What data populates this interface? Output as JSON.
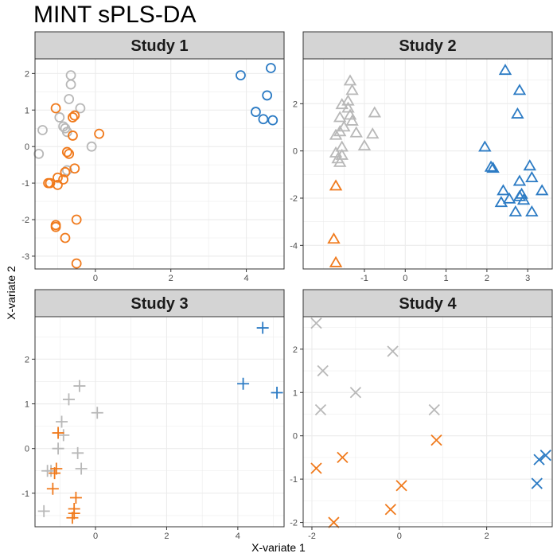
{
  "title": "MINT sPLS-DA",
  "xlabel": "X-variate 1",
  "ylabel": "X-variate 2",
  "colors": {
    "orange": "#F07A1C",
    "blue": "#2C7BC4",
    "grey": "#B8B8B8"
  },
  "chart_data": [
    {
      "type": "scatter",
      "title": "Study 1",
      "marker": "circle",
      "grid": true,
      "xlim": [
        -1.6,
        5.0
      ],
      "ylim": [
        -3.35,
        2.4
      ],
      "xticks": [
        0,
        2,
        4
      ],
      "yticks": [
        -3,
        -2,
        -1,
        0,
        1,
        2
      ],
      "series": [
        {
          "color": "#B8B8B8",
          "points": [
            [
              -0.65,
              1.95
            ],
            [
              -0.65,
              1.7
            ],
            [
              -0.7,
              1.3
            ],
            [
              -0.4,
              1.05
            ],
            [
              -0.95,
              0.8
            ],
            [
              -0.85,
              0.55
            ],
            [
              -0.8,
              0.5
            ],
            [
              -1.4,
              0.45
            ],
            [
              -0.75,
              0.4
            ],
            [
              -0.1,
              0.0
            ],
            [
              -1.5,
              -0.2
            ],
            [
              -0.75,
              -0.65
            ]
          ]
        },
        {
          "color": "#F07A1C",
          "points": [
            [
              -1.05,
              1.05
            ],
            [
              -0.55,
              0.85
            ],
            [
              -0.6,
              0.8
            ],
            [
              0.1,
              0.35
            ],
            [
              -0.6,
              0.3
            ],
            [
              -0.75,
              -0.15
            ],
            [
              -0.7,
              -0.2
            ],
            [
              -0.55,
              -0.6
            ],
            [
              -0.8,
              -0.7
            ],
            [
              -1.0,
              -0.85
            ],
            [
              -0.85,
              -0.9
            ],
            [
              -1.25,
              -1.0
            ],
            [
              -1.2,
              -1.0
            ],
            [
              -1.0,
              -1.05
            ],
            [
              -0.5,
              -2.0
            ],
            [
              -1.05,
              -2.15
            ],
            [
              -1.05,
              -2.2
            ],
            [
              -0.8,
              -2.5
            ],
            [
              -0.5,
              -3.2
            ]
          ]
        },
        {
          "color": "#2C7BC4",
          "points": [
            [
              4.65,
              2.15
            ],
            [
              3.85,
              1.95
            ],
            [
              4.55,
              1.4
            ],
            [
              4.25,
              0.95
            ],
            [
              4.45,
              0.75
            ],
            [
              4.7,
              0.72
            ]
          ]
        }
      ]
    },
    {
      "type": "scatter",
      "title": "Study 2",
      "marker": "triangle",
      "grid": true,
      "xlim": [
        -2.5,
        3.6
      ],
      "ylim": [
        -5.0,
        3.9
      ],
      "xticks": [
        -1,
        0,
        1,
        2,
        3
      ],
      "yticks": [
        -4,
        -2,
        0,
        2
      ],
      "series": [
        {
          "color": "#B8B8B8",
          "points": [
            [
              -1.35,
              2.95
            ],
            [
              -1.3,
              2.55
            ],
            [
              -1.4,
              2.1
            ],
            [
              -1.55,
              1.95
            ],
            [
              -1.4,
              1.8
            ],
            [
              -1.35,
              1.5
            ],
            [
              -1.6,
              1.4
            ],
            [
              -1.3,
              1.25
            ],
            [
              -1.5,
              1.0
            ],
            [
              -0.75,
              1.6
            ],
            [
              -1.6,
              0.8
            ],
            [
              -1.2,
              0.75
            ],
            [
              -0.8,
              0.7
            ],
            [
              -1.7,
              0.65
            ],
            [
              -1.0,
              0.2
            ],
            [
              -1.55,
              0.15
            ],
            [
              -1.7,
              -0.1
            ],
            [
              -1.55,
              -0.2
            ],
            [
              -1.65,
              -0.35
            ],
            [
              -1.6,
              -0.5
            ]
          ]
        },
        {
          "color": "#F07A1C",
          "points": [
            [
              -1.7,
              -1.5
            ],
            [
              -1.75,
              -3.75
            ],
            [
              -1.7,
              -4.75
            ]
          ]
        },
        {
          "color": "#2C7BC4",
          "points": [
            [
              2.45,
              3.4
            ],
            [
              2.8,
              2.55
            ],
            [
              2.75,
              1.55
            ],
            [
              1.95,
              0.15
            ],
            [
              2.1,
              -0.7
            ],
            [
              2.15,
              -0.75
            ],
            [
              3.05,
              -0.65
            ],
            [
              3.1,
              -1.15
            ],
            [
              2.8,
              -1.3
            ],
            [
              3.35,
              -1.7
            ],
            [
              2.4,
              -1.7
            ],
            [
              2.85,
              -1.85
            ],
            [
              2.8,
              -1.95
            ],
            [
              2.55,
              -2.05
            ],
            [
              2.9,
              -2.1
            ],
            [
              2.35,
              -2.2
            ],
            [
              2.7,
              -2.6
            ],
            [
              3.1,
              -2.6
            ]
          ]
        }
      ]
    },
    {
      "type": "scatter",
      "title": "Study 3",
      "marker": "plus",
      "grid": true,
      "xlim": [
        -1.7,
        5.3
      ],
      "ylim": [
        -1.75,
        2.95
      ],
      "xticks": [
        0,
        2,
        4
      ],
      "yticks": [
        -1,
        0,
        1,
        2
      ],
      "series": [
        {
          "color": "#B8B8B8",
          "points": [
            [
              -0.45,
              1.4
            ],
            [
              -0.75,
              1.1
            ],
            [
              0.05,
              0.8
            ],
            [
              -0.95,
              0.6
            ],
            [
              -0.9,
              0.3
            ],
            [
              -1.05,
              0.0
            ],
            [
              -0.5,
              -0.1
            ],
            [
              -1.35,
              -0.5
            ],
            [
              -1.25,
              -0.5
            ],
            [
              -0.4,
              -0.45
            ],
            [
              -1.45,
              -1.4
            ]
          ]
        },
        {
          "color": "#F07A1C",
          "points": [
            [
              -1.05,
              0.35
            ],
            [
              -1.1,
              -0.45
            ],
            [
              -1.15,
              -0.55
            ],
            [
              -1.2,
              -0.9
            ],
            [
              -0.55,
              -1.1
            ],
            [
              -0.6,
              -1.35
            ],
            [
              -0.6,
              -1.45
            ],
            [
              -0.65,
              -1.55
            ]
          ]
        },
        {
          "color": "#2C7BC4",
          "points": [
            [
              4.7,
              2.7
            ],
            [
              4.15,
              1.45
            ],
            [
              5.1,
              1.25
            ]
          ]
        }
      ]
    },
    {
      "type": "scatter",
      "title": "Study 4",
      "marker": "x",
      "grid": true,
      "xlim": [
        -2.2,
        3.5
      ],
      "ylim": [
        -2.1,
        2.75
      ],
      "xticks": [
        -2,
        0,
        2
      ],
      "yticks": [
        -2,
        -1,
        0,
        1,
        2
      ],
      "series": [
        {
          "color": "#B8B8B8",
          "points": [
            [
              -1.9,
              2.6
            ],
            [
              -0.15,
              1.95
            ],
            [
              -1.75,
              1.5
            ],
            [
              -1.0,
              1.0
            ],
            [
              -1.8,
              0.6
            ],
            [
              0.8,
              0.6
            ]
          ]
        },
        {
          "color": "#F07A1C",
          "points": [
            [
              0.85,
              -0.1
            ],
            [
              -1.9,
              -0.75
            ],
            [
              -1.3,
              -0.5
            ],
            [
              0.05,
              -1.15
            ],
            [
              -0.2,
              -1.7
            ],
            [
              -1.5,
              -2.0
            ]
          ]
        },
        {
          "color": "#2C7BC4",
          "points": [
            [
              3.35,
              -0.45
            ],
            [
              3.2,
              -0.55
            ],
            [
              3.15,
              -1.1
            ]
          ]
        }
      ]
    }
  ]
}
